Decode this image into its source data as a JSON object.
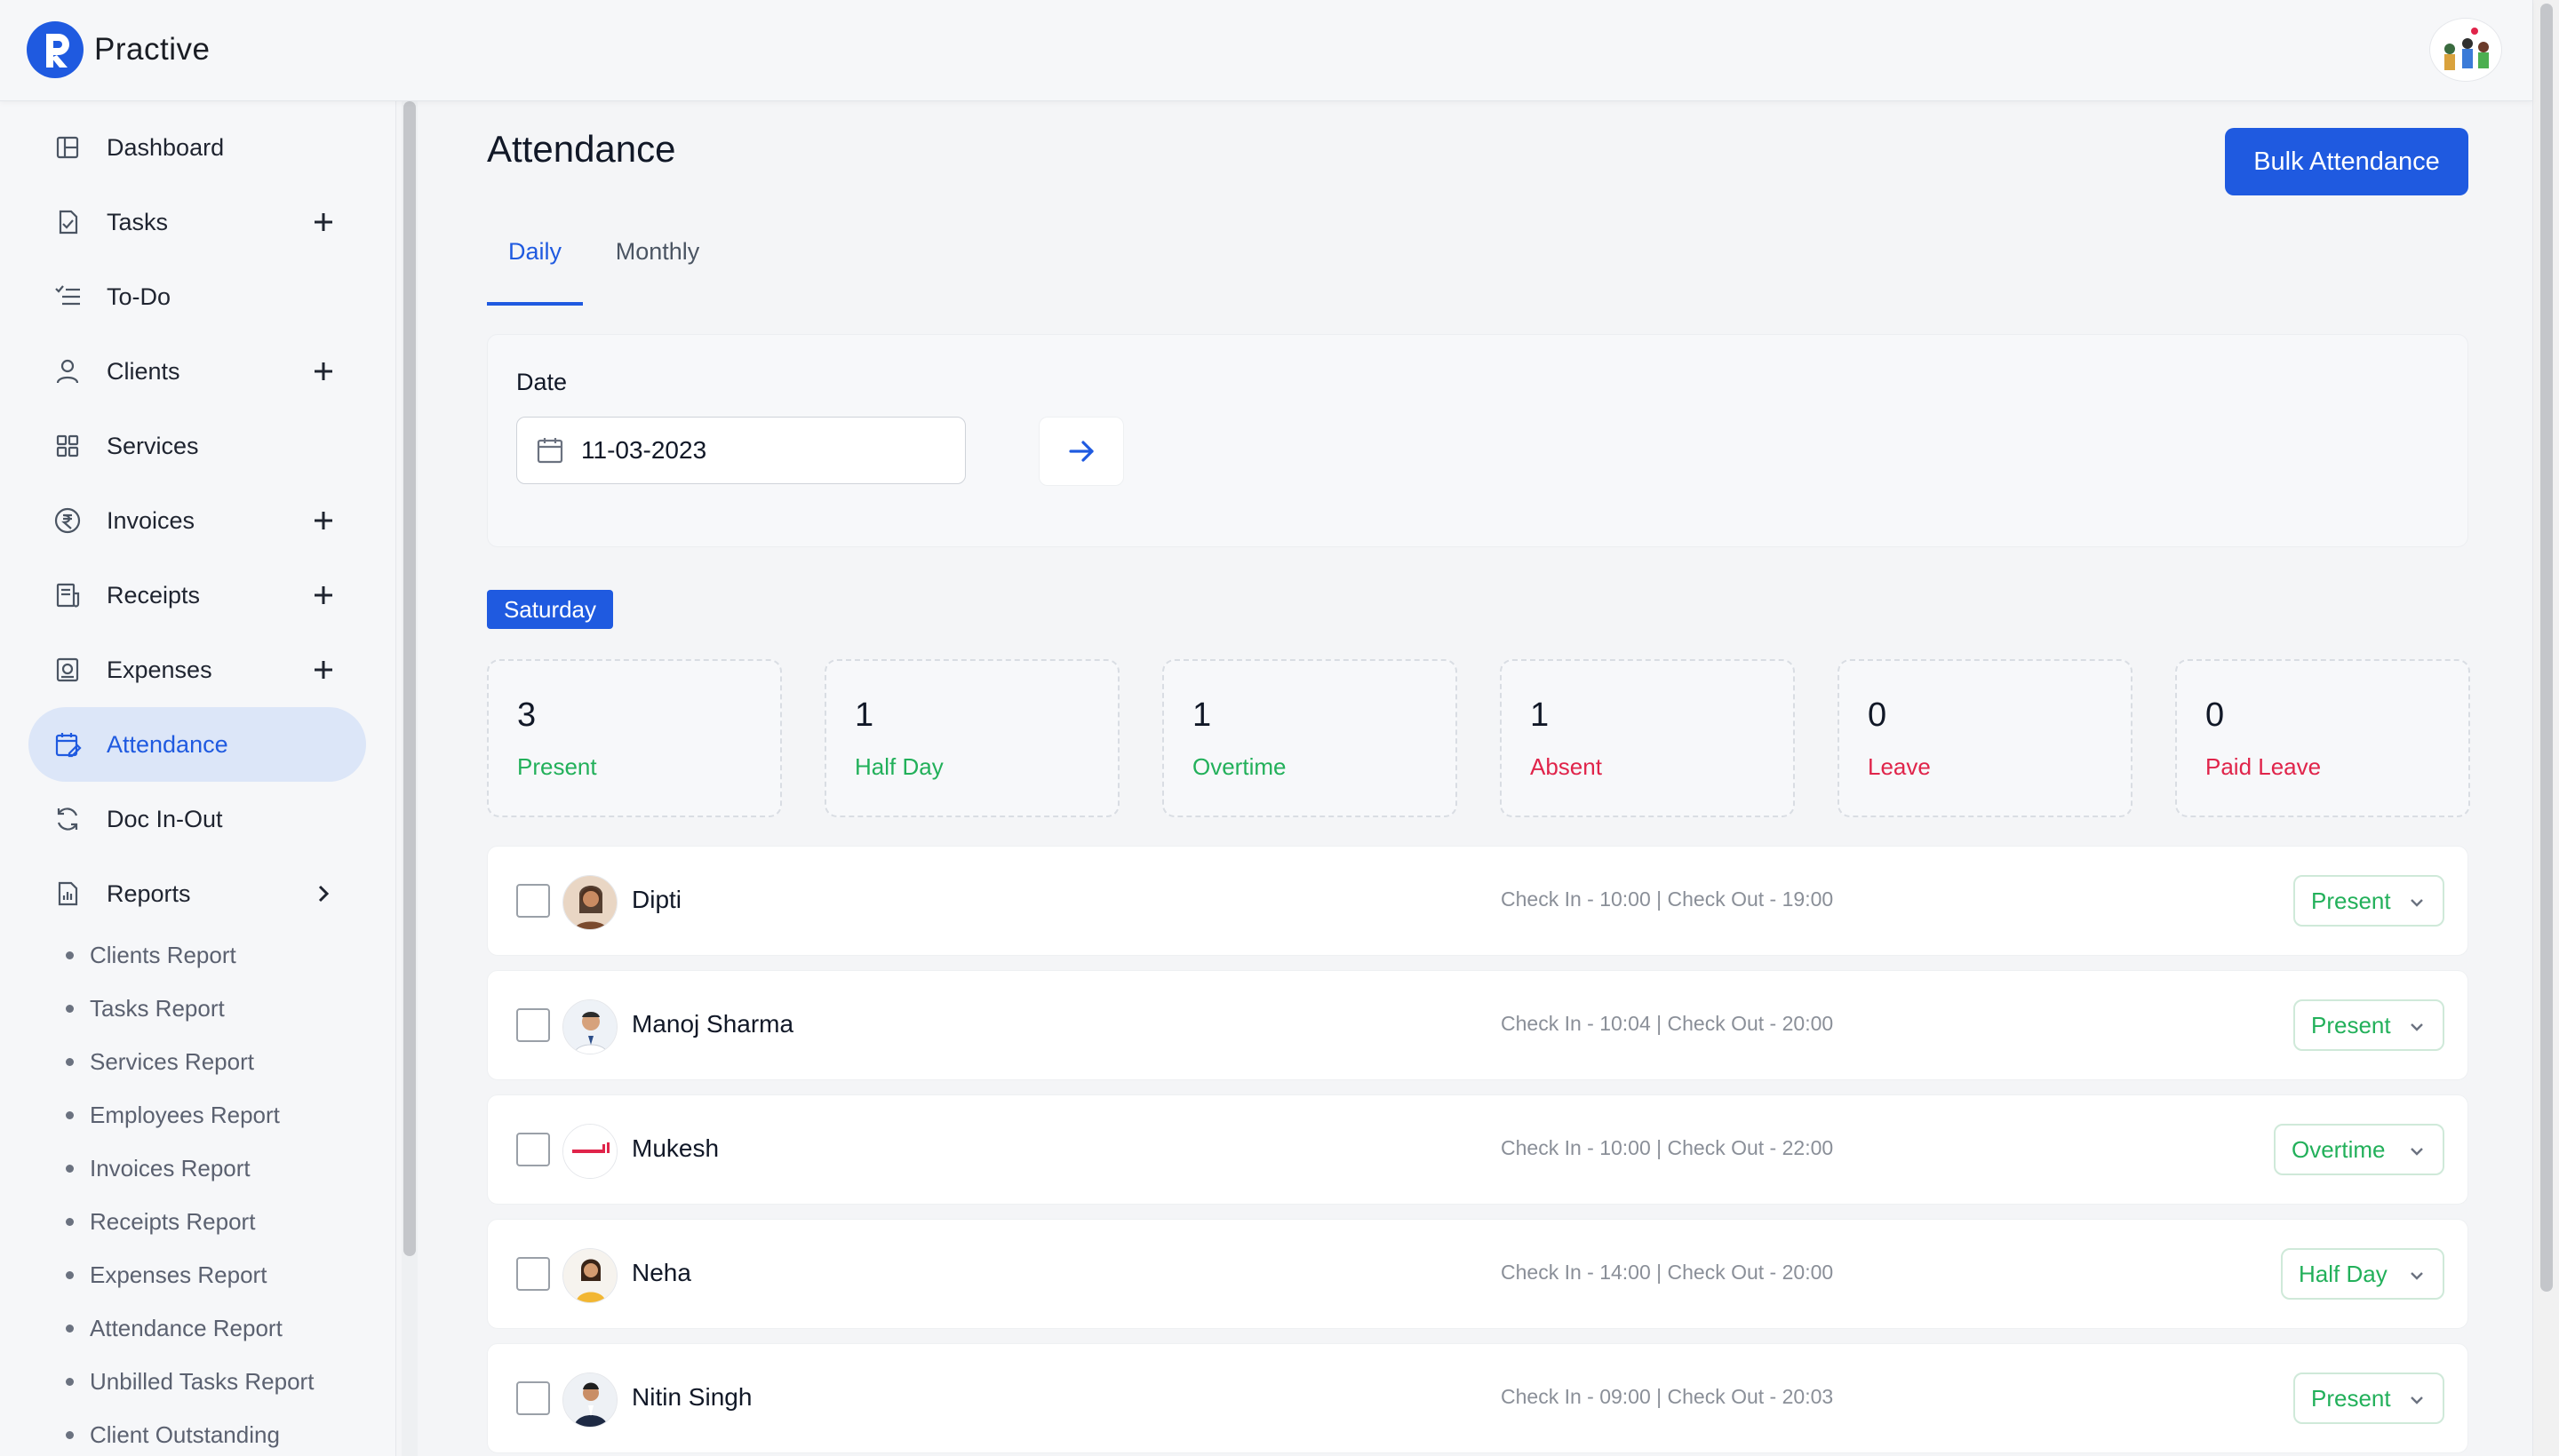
{
  "app": {
    "name": "Practive"
  },
  "sidebar": {
    "items": [
      {
        "label": "Dashboard",
        "icon": "dashboard-icon",
        "plus": false
      },
      {
        "label": "Tasks",
        "icon": "tasks-icon",
        "plus": true
      },
      {
        "label": "To-Do",
        "icon": "todo-icon",
        "plus": false
      },
      {
        "label": "Clients",
        "icon": "user-icon",
        "plus": true
      },
      {
        "label": "Services",
        "icon": "grid-icon",
        "plus": false
      },
      {
        "label": "Invoices",
        "icon": "rupee-icon",
        "plus": true
      },
      {
        "label": "Receipts",
        "icon": "receipt-icon",
        "plus": true
      },
      {
        "label": "Expenses",
        "icon": "expense-icon",
        "plus": true
      },
      {
        "label": "Attendance",
        "icon": "calendar-edit-icon",
        "plus": false,
        "active": true
      },
      {
        "label": "Doc In-Out",
        "icon": "sync-icon",
        "plus": false
      },
      {
        "label": "Reports",
        "icon": "report-icon",
        "plus": false,
        "chevron": true
      }
    ],
    "reports": [
      "Clients Report",
      "Tasks Report",
      "Services Report",
      "Employees Report",
      "Invoices Report",
      "Receipts Report",
      "Expenses Report",
      "Attendance Report",
      "Unbilled Tasks Report",
      "Client Outstanding"
    ]
  },
  "main": {
    "title": "Attendance",
    "bulk_button": "Bulk Attendance",
    "tabs": [
      "Daily",
      "Monthly"
    ],
    "date_label": "Date",
    "date_value": "11-03-2023",
    "day": "Saturday",
    "stats": [
      {
        "value": "3",
        "label": "Present",
        "tone": "green"
      },
      {
        "value": "1",
        "label": "Half Day",
        "tone": "green"
      },
      {
        "value": "1",
        "label": "Overtime",
        "tone": "green"
      },
      {
        "value": "1",
        "label": "Absent",
        "tone": "red"
      },
      {
        "value": "0",
        "label": "Leave",
        "tone": "red"
      },
      {
        "value": "0",
        "label": "Paid Leave",
        "tone": "red"
      }
    ],
    "employees": [
      {
        "name": "Dipti",
        "times": "Check In - 10:00 | Check Out - 19:00",
        "status": "Present"
      },
      {
        "name": "Manoj Sharma",
        "times": "Check In - 10:04 | Check Out - 20:00",
        "status": "Present"
      },
      {
        "name": "Mukesh",
        "times": "Check In - 10:00 | Check Out - 22:00",
        "status": "Overtime"
      },
      {
        "name": "Neha",
        "times": "Check In - 14:00 | Check Out - 20:00",
        "status": "Half Day"
      },
      {
        "name": "Nitin Singh",
        "times": "Check In - 09:00 | Check Out - 20:03",
        "status": "Present"
      }
    ]
  },
  "colors": {
    "brand": "#1f5ae0",
    "green": "#22b05a",
    "red": "#e0244a"
  }
}
